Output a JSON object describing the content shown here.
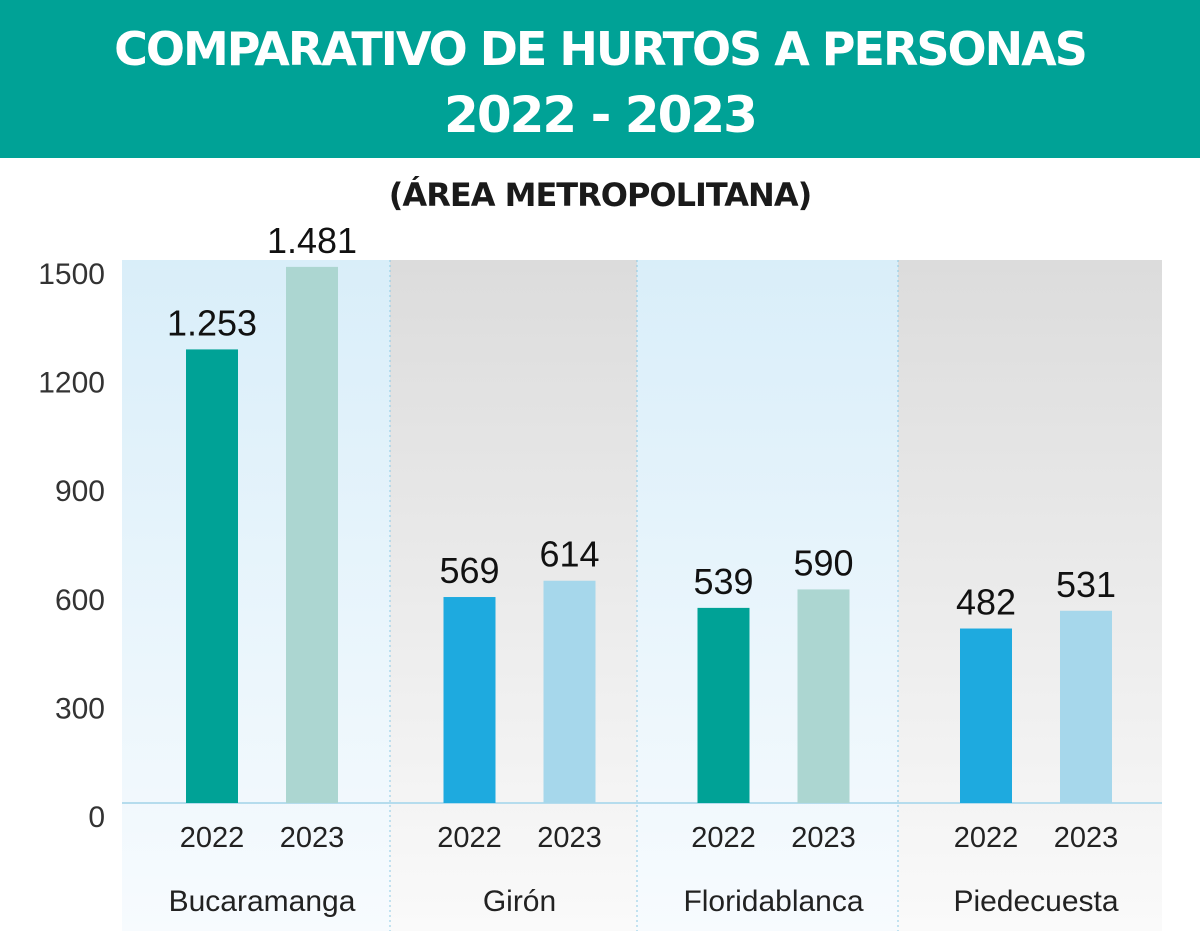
{
  "header": {
    "title_line1": "COMPARATIVO DE HURTOS A PERSONAS",
    "title_line2": "2022 - 2023",
    "subtitle": "(ÁREA METROPOLITANA)"
  },
  "colors": {
    "banner": "#00a296",
    "dark_teal": "#00a296",
    "light_teal": "#acd6d1",
    "blue": "#1eaadf",
    "light_blue": "#a6d7eb",
    "panel_blue": "#dff0f9",
    "panel_gray": "#dedede"
  },
  "chart_data": {
    "type": "bar",
    "categories": [
      "Bucaramanga",
      "Girón",
      "Floridablanca",
      "Piedecuesta"
    ],
    "years": [
      "2022",
      "2023"
    ],
    "series": [
      {
        "name": "2022",
        "values": [
          1253,
          569,
          539,
          482
        ]
      },
      {
        "name": "2023",
        "values": [
          1481,
          614,
          590,
          531
        ]
      }
    ],
    "value_labels": [
      [
        "1.253",
        "1.481"
      ],
      [
        "569",
        "614"
      ],
      [
        "539",
        "590"
      ],
      [
        "482",
        "531"
      ]
    ],
    "y_ticks": [
      0,
      300,
      600,
      900,
      1200,
      1500
    ],
    "ylim": [
      0,
      1500
    ],
    "title": "COMPARATIVO DE HURTOS A PERSONAS 2022 - 2023",
    "subtitle": "(ÁREA METROPOLITANA)",
    "xlabel": "",
    "ylabel": "",
    "grid": false,
    "legend": "none"
  }
}
